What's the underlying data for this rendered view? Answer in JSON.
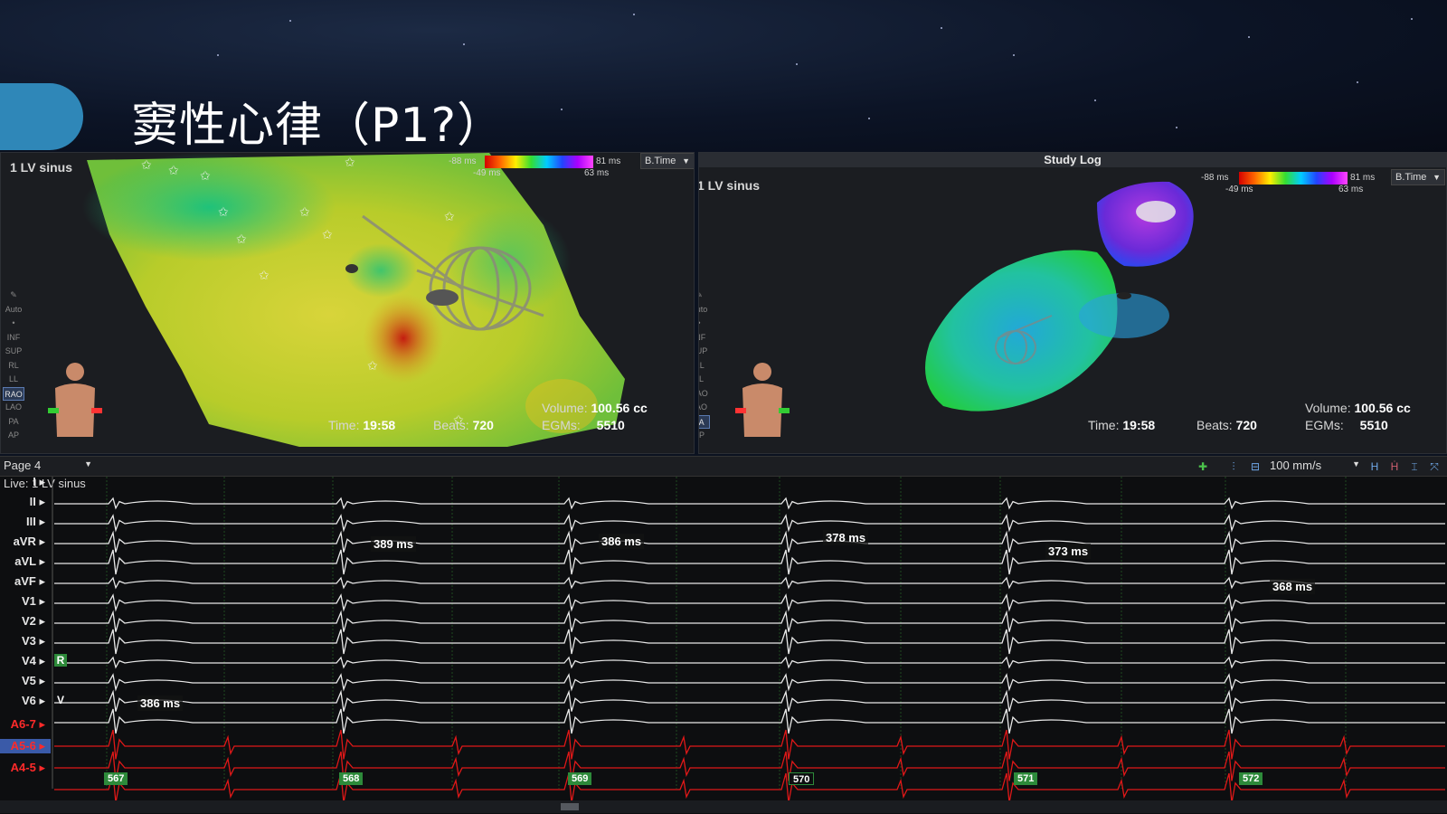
{
  "slide": {
    "title": "窦性心律（P1?）"
  },
  "map_left": {
    "label": "1 LV sinus",
    "scale": {
      "min_outer": "-88 ms",
      "min_inner": "-49 ms",
      "max_outer": "81 ms",
      "max_inner": "63 ms"
    },
    "mode": "B.Time",
    "time_label": "Time:",
    "time_value": "19:58",
    "beats_label": "Beats:",
    "beats_value": "720",
    "volume_label": "Volume:",
    "volume_value": "100.56 cc",
    "egms_label": "EGMs:",
    "egms_value": "5510",
    "views": [
      "Auto",
      "•",
      "INF",
      "SUP",
      "RL",
      "LL",
      "RAO",
      "LAO",
      "PA",
      "AP"
    ],
    "selected_view": "RAO"
  },
  "map_right": {
    "panel_title": "Study Log",
    "label": "1 LV sinus",
    "scale": {
      "min_outer": "-88 ms",
      "min_inner": "-49 ms",
      "max_outer": "81 ms",
      "max_inner": "63 ms"
    },
    "mode": "B.Time",
    "time_label": "Time:",
    "time_value": "19:58",
    "beats_label": "Beats:",
    "beats_value": "720",
    "volume_label": "Volume:",
    "volume_value": "100.56 cc",
    "egms_label": "EGMs:",
    "egms_value": "5510",
    "views": [
      "Auto",
      "•",
      "INF",
      "SUP",
      "RL",
      "LL",
      "RAO",
      "LAO",
      "PA",
      "AP"
    ],
    "selected_view": "PA"
  },
  "ecg": {
    "page": "Page 4",
    "speed": "100 mm/s",
    "live_label": "Live: 1 LV sinus",
    "leads": [
      "I",
      "II",
      "III",
      "aVR",
      "aVL",
      "aVF",
      "V1",
      "V2",
      "V3",
      "V4",
      "V5",
      "V6",
      "A6-7",
      "A5-6",
      "A4-5"
    ],
    "markers": {
      "r": "R",
      "v": "V"
    },
    "intervals": [
      "389 ms",
      "386 ms",
      "378 ms",
      "373 ms",
      "368 ms",
      "386 ms"
    ],
    "beats": [
      "567",
      "568",
      "569",
      "570",
      "571",
      "572"
    ]
  }
}
